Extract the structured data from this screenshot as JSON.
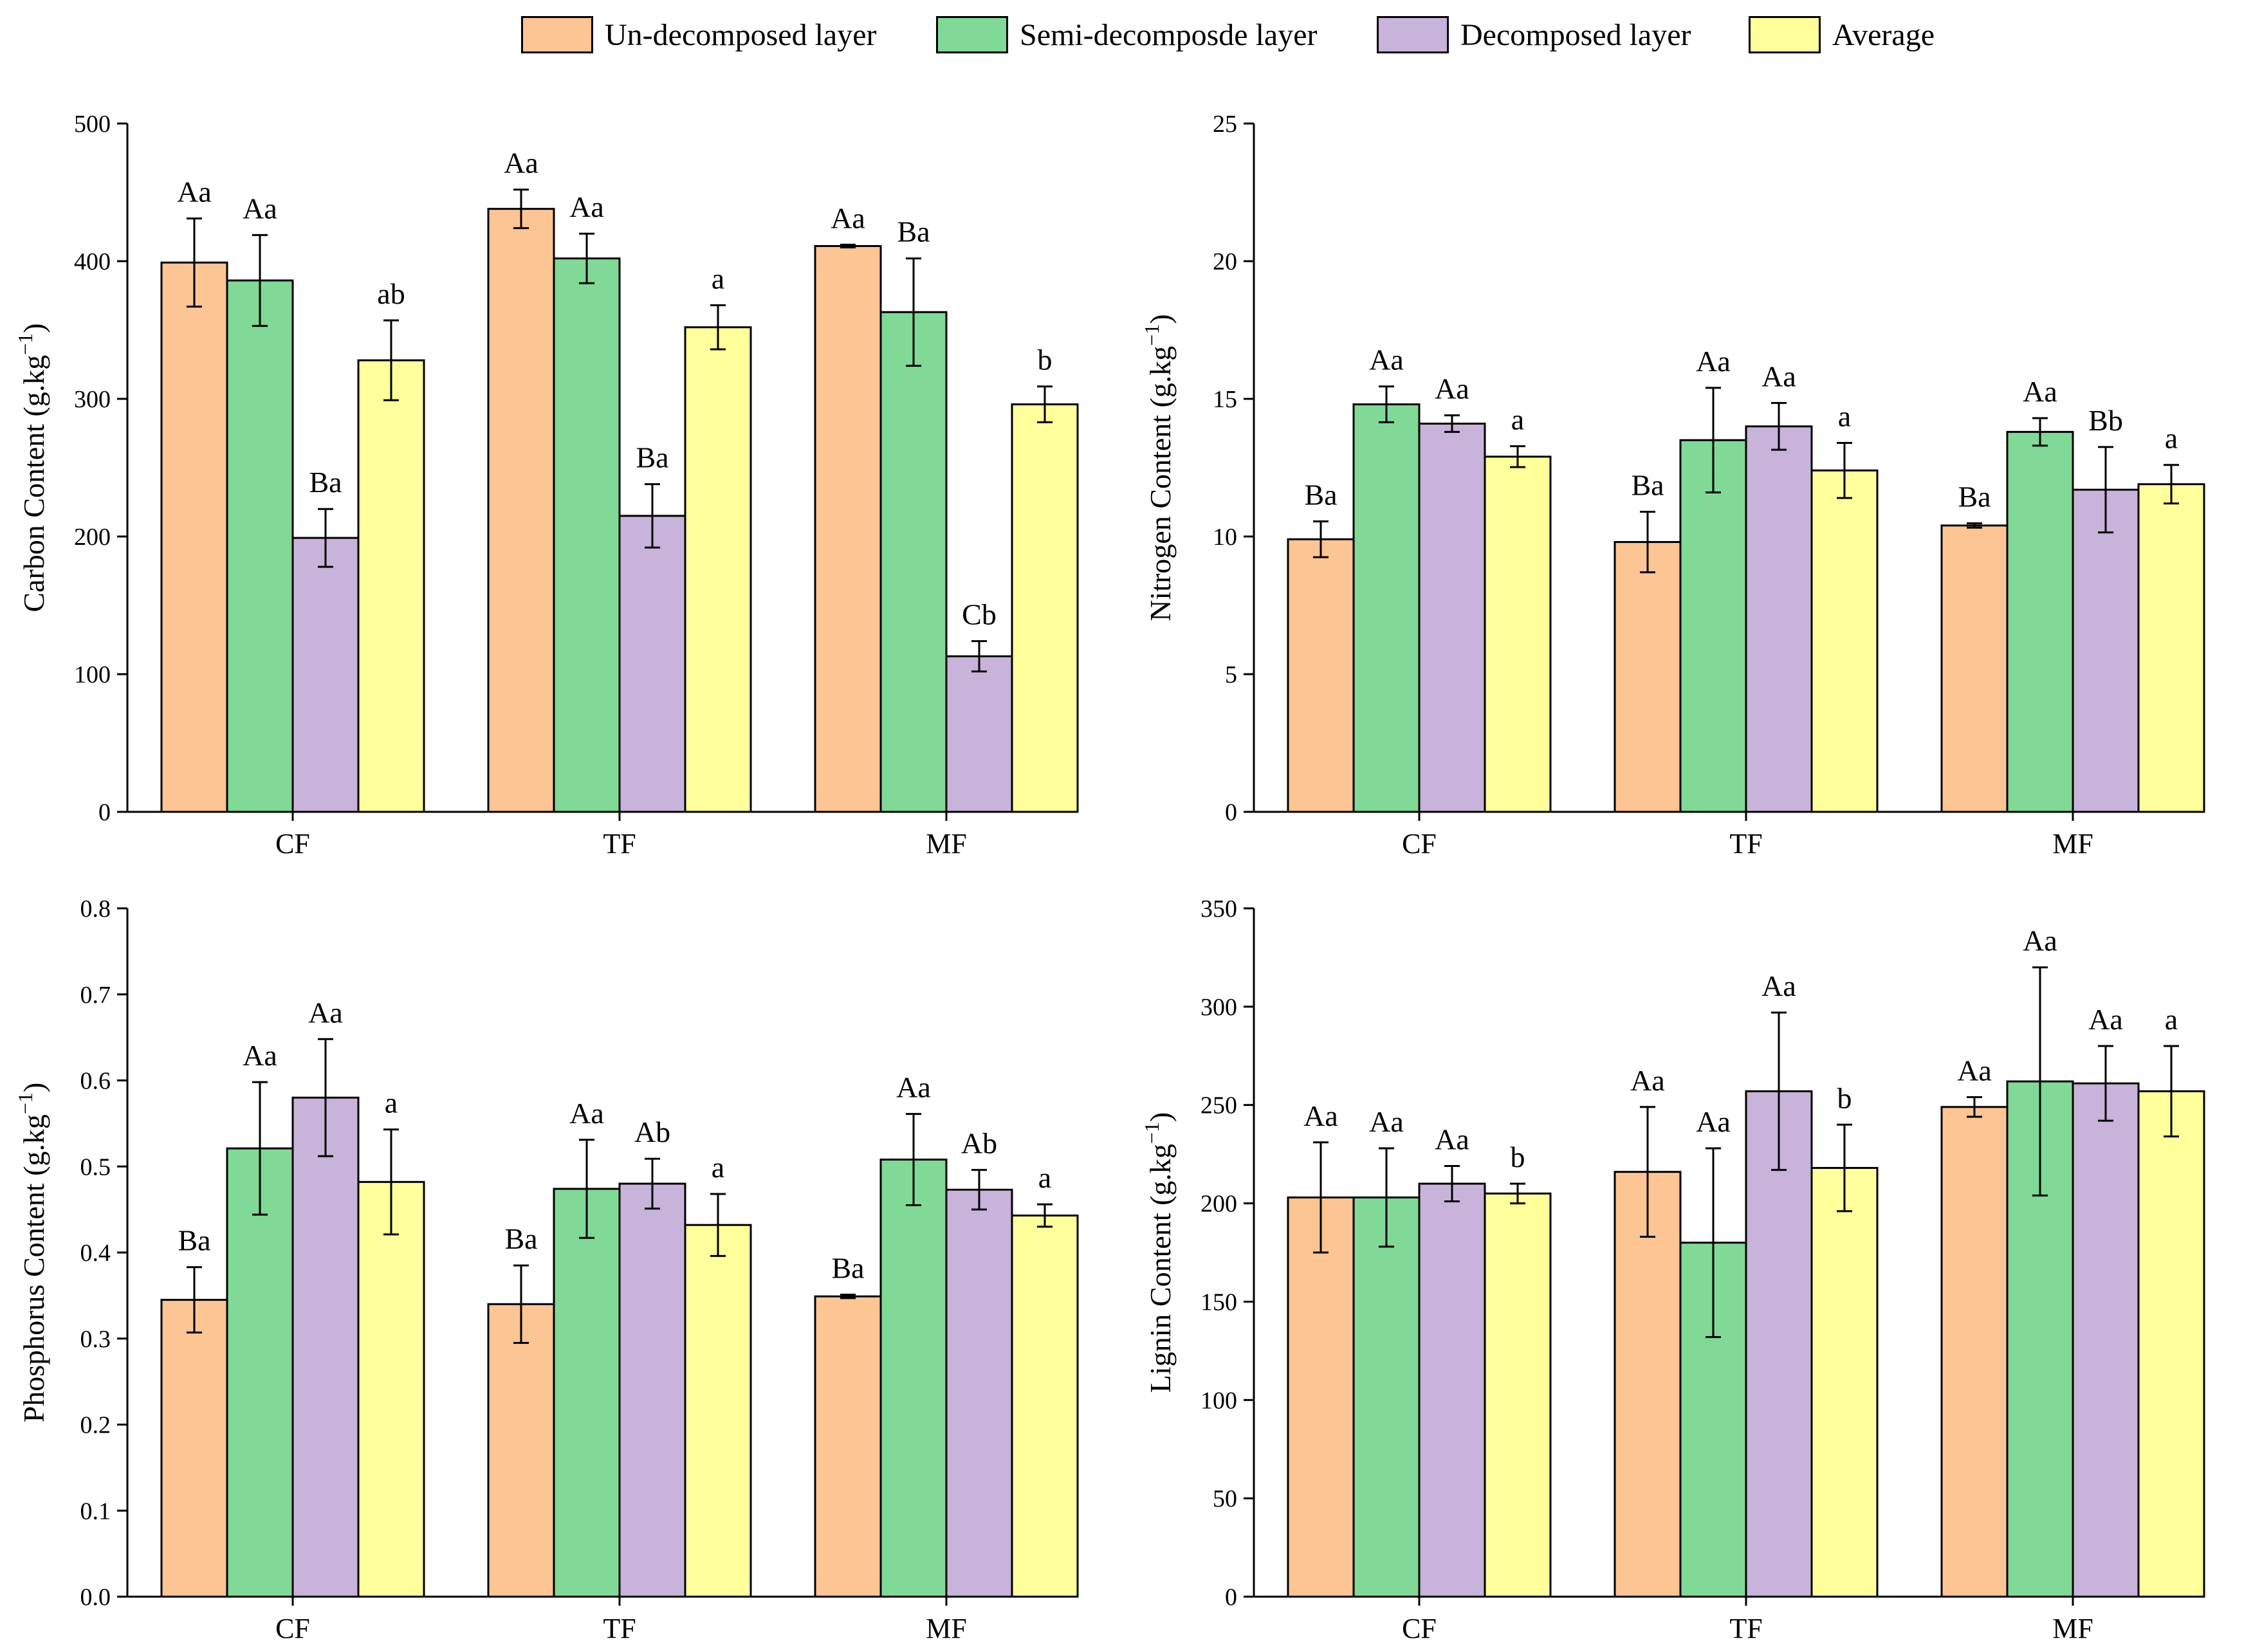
{
  "legend": [
    {
      "label": "Un-decomposed layer",
      "color": "#FDC494"
    },
    {
      "label": "Semi-decomposde layer",
      "color": "#80D996"
    },
    {
      "label": "Decomposed layer",
      "color": "#C8B3DA"
    },
    {
      "label": "Average",
      "color": "#FFFF9C"
    }
  ],
  "chart_data": [
    {
      "type": "bar",
      "ylabel": "Carbon Content",
      "ylabel_unit": "(g.kg",
      "ylabel_exp": "−1",
      "ylabel_close": ")",
      "ylim": [
        0,
        500
      ],
      "yticks": [
        "0",
        "100",
        "200",
        "300",
        "400",
        "500"
      ],
      "categories": [
        "CF",
        "TF",
        "MF"
      ],
      "series": [
        {
          "name": "Un-decomposed layer",
          "values": [
            399,
            438,
            411
          ],
          "errors": [
            32,
            14,
            1
          ],
          "labels": [
            "Aa",
            "Aa",
            "Aa"
          ]
        },
        {
          "name": "Semi-decomposde layer",
          "values": [
            386,
            402,
            363
          ],
          "errors": [
            33,
            18,
            39
          ],
          "labels": [
            "Aa",
            "Aa",
            "Ba"
          ]
        },
        {
          "name": "Decomposed layer",
          "values": [
            199,
            215,
            113
          ],
          "errors": [
            21,
            23,
            11
          ],
          "labels": [
            "Ba",
            "Ba",
            "Cb"
          ]
        },
        {
          "name": "Average",
          "values": [
            328,
            352,
            296
          ],
          "errors": [
            29,
            16,
            13
          ],
          "labels": [
            "ab",
            "a",
            "b"
          ]
        }
      ]
    },
    {
      "type": "bar",
      "ylabel": "Nitrogen Content",
      "ylabel_unit": "(g.kg",
      "ylabel_exp": "−1",
      "ylabel_close": ")",
      "ylim": [
        0,
        25
      ],
      "yticks": [
        "0",
        "5",
        "10",
        "15",
        "20",
        "25"
      ],
      "categories": [
        "CF",
        "TF",
        "MF"
      ],
      "series": [
        {
          "name": "Un-decomposed layer",
          "values": [
            9.9,
            9.8,
            10.4
          ],
          "errors": [
            0.65,
            1.1,
            0.08
          ],
          "labels": [
            "Ba",
            "Ba",
            "Ba"
          ]
        },
        {
          "name": "Semi-decomposde layer",
          "values": [
            14.8,
            13.5,
            13.8
          ],
          "errors": [
            0.65,
            1.9,
            0.5
          ],
          "labels": [
            "Aa",
            "Aa",
            "Aa"
          ]
        },
        {
          "name": "Decomposed layer",
          "values": [
            14.1,
            14.0,
            11.7
          ],
          "errors": [
            0.3,
            0.85,
            1.55
          ],
          "labels": [
            "Aa",
            "Aa",
            "Bb"
          ]
        },
        {
          "name": "Average",
          "values": [
            12.9,
            12.4,
            11.9
          ],
          "errors": [
            0.38,
            1.0,
            0.7
          ],
          "labels": [
            "a",
            "a",
            "a"
          ]
        }
      ]
    },
    {
      "type": "bar",
      "ylabel": "Phosphorus Content",
      "ylabel_unit": "(g.kg",
      "ylabel_exp": "−1",
      "ylabel_close": ")",
      "ylim": [
        0,
        0.8
      ],
      "yticks": [
        "0.0",
        "0.1",
        "0.2",
        "0.3",
        "0.4",
        "0.5",
        "0.6",
        "0.7",
        "0.8"
      ],
      "categories": [
        "CF",
        "TF",
        "MF"
      ],
      "series": [
        {
          "name": "Un-decomposed layer",
          "values": [
            0.345,
            0.34,
            0.349
          ],
          "errors": [
            0.038,
            0.045,
            0.002
          ],
          "labels": [
            "Ba",
            "Ba",
            "Ba"
          ]
        },
        {
          "name": "Semi-decomposde layer",
          "values": [
            0.521,
            0.474,
            0.508
          ],
          "errors": [
            0.077,
            0.057,
            0.053
          ],
          "labels": [
            "Aa",
            "Aa",
            "Aa"
          ]
        },
        {
          "name": "Decomposed layer",
          "values": [
            0.58,
            0.48,
            0.473
          ],
          "errors": [
            0.068,
            0.029,
            0.023
          ],
          "labels": [
            "Aa",
            "Ab",
            "Ab"
          ]
        },
        {
          "name": "Average",
          "values": [
            0.482,
            0.432,
            0.443
          ],
          "errors": [
            0.061,
            0.036,
            0.013
          ],
          "labels": [
            "a",
            "a",
            "a"
          ]
        }
      ]
    },
    {
      "type": "bar",
      "ylabel": "Lignin Content",
      "ylabel_unit": "(g.kg",
      "ylabel_exp": "−1",
      "ylabel_close": ")",
      "ylim": [
        0,
        350
      ],
      "yticks": [
        "0",
        "50",
        "100",
        "150",
        "200",
        "250",
        "300",
        "350"
      ],
      "categories": [
        "CF",
        "TF",
        "MF"
      ],
      "series": [
        {
          "name": "Un-decomposed layer",
          "values": [
            203,
            216,
            249
          ],
          "errors": [
            28,
            33,
            5
          ],
          "labels": [
            "Aa",
            "Aa",
            "Aa"
          ]
        },
        {
          "name": "Semi-decomposde layer",
          "values": [
            203,
            180,
            262
          ],
          "errors": [
            25,
            48,
            58
          ],
          "labels": [
            "Aa",
            "Aa",
            "Aa"
          ]
        },
        {
          "name": "Decomposed layer",
          "values": [
            210,
            257,
            261
          ],
          "errors": [
            9,
            40,
            19
          ],
          "labels": [
            "Aa",
            "Aa",
            "Aa"
          ]
        },
        {
          "name": "Average",
          "values": [
            205,
            218,
            257
          ],
          "errors": [
            5,
            22,
            23
          ],
          "labels": [
            "b",
            "b",
            "a"
          ]
        }
      ]
    }
  ]
}
